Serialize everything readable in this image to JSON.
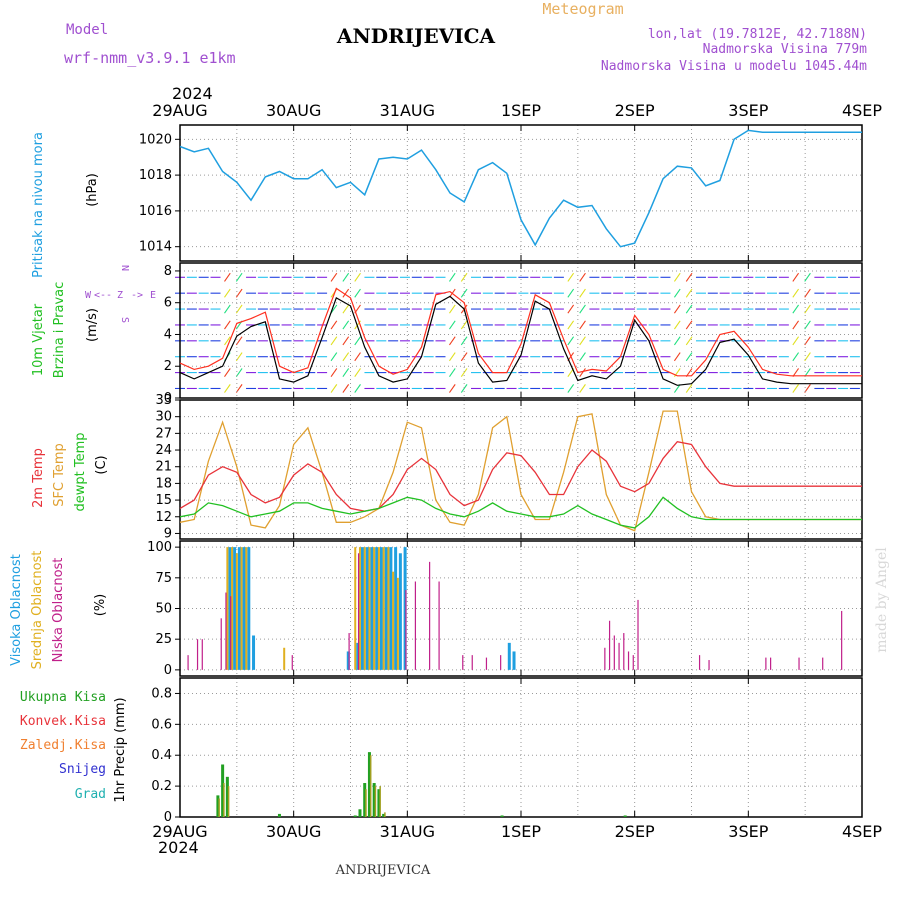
{
  "header": {
    "model_label": "Model",
    "model_name": "wrf-nmm_v3.9.1 e1km",
    "station": "ANDRIJEVICA",
    "meteogram_label": "Meteogram",
    "lonlat": "lon,lat (19.7812E, 42.7188N)",
    "altitude": "Nadmorska Visina 779m",
    "model_altitude": "Nadmorska Visina u modelu 1045.44m",
    "footer_station": "ANDRIJEVICA",
    "credit": "made by Angel"
  },
  "colors": {
    "pressure": "#1f9fe0",
    "temp2m": "#e8333a",
    "sfc_temp": "#e0a030",
    "dewpoint": "#22c022",
    "cloud_high": "#1f9fe0",
    "cloud_mid": "#e0b020",
    "cloud_low": "#c0208a",
    "precip_total": "#22a022",
    "precip_conv": "#e8333a",
    "precip_frozen": "#f08030",
    "precip_snow": "#3030d0",
    "precip_hail": "#20b0b0",
    "wind_speed": "#000000",
    "gust": "#ff3020",
    "label_purple": "#a050d0",
    "label_meteogram": "#e8b060"
  },
  "chart_data": [
    {
      "type": "line",
      "panel": "pressure",
      "x_axis": {
        "year_top": "2024",
        "year_bottom": "2024",
        "ticks": [
          "29AUG",
          "30AUG",
          "31AUG",
          "1SEP",
          "2SEP",
          "3SEP",
          "4SEP"
        ],
        "range_hours": [
          0,
          144
        ]
      },
      "ylabel": "Pritisak na nivou mora",
      "unit": "(hPa)",
      "yticks": [
        1014,
        1016,
        1018,
        1020
      ],
      "ylim": [
        1013.2,
        1020.8
      ],
      "grid": true,
      "x_hours": [
        0,
        3,
        6,
        9,
        12,
        15,
        18,
        21,
        24,
        27,
        30,
        33,
        36,
        39,
        42,
        45,
        48,
        51,
        54,
        57,
        60,
        63,
        66,
        69,
        72,
        75,
        78,
        81,
        84,
        87,
        90,
        93,
        96,
        99,
        102,
        105,
        108,
        111,
        114,
        117,
        120,
        123,
        126,
        129,
        132,
        135,
        138,
        141,
        144
      ],
      "values": [
        1019.6,
        1019.3,
        1019.5,
        1018.2,
        1017.6,
        1016.6,
        1017.9,
        1018.2,
        1017.8,
        1017.8,
        1018.3,
        1017.3,
        1017.6,
        1016.9,
        1018.9,
        1019.0,
        1018.9,
        1019.4,
        1018.3,
        1017.0,
        1016.5,
        1018.3,
        1018.7,
        1018.1,
        1015.5,
        1014.1,
        1015.6,
        1016.6,
        1016.2,
        1016.3,
        1015.0,
        1014.0,
        1014.2,
        1015.9,
        1017.8,
        1018.5,
        1018.4,
        1017.4,
        1017.7,
        1020.0,
        1020.5,
        1020.4,
        1020.4,
        1020.4,
        1020.4,
        1020.4,
        1020.4,
        1020.4,
        1020.4
      ]
    },
    {
      "type": "line",
      "panel": "wind",
      "ylabel_1": "10m Vjetar",
      "ylabel_2": "Brzina i Pravac",
      "unit": "(m/s)",
      "compass_legend": [
        "W",
        "<--",
        "Z",
        "->",
        "E",
        "N",
        "S"
      ],
      "yticks": [
        0,
        2,
        4,
        6,
        8
      ],
      "ylim": [
        0,
        8.5
      ],
      "grid": true,
      "x_hours": [
        0,
        3,
        6,
        9,
        12,
        15,
        18,
        21,
        24,
        27,
        30,
        33,
        36,
        39,
        42,
        45,
        48,
        51,
        54,
        57,
        60,
        63,
        66,
        69,
        72,
        75,
        78,
        81,
        84,
        87,
        90,
        93,
        96,
        99,
        102,
        105,
        108,
        111,
        114,
        117,
        120,
        123,
        126,
        129,
        132,
        135,
        138,
        141,
        144
      ],
      "speed": [
        1.6,
        1.2,
        1.6,
        2.0,
        3.9,
        4.5,
        4.8,
        1.2,
        1.0,
        1.4,
        3.8,
        6.3,
        5.8,
        3.2,
        1.4,
        1.0,
        1.2,
        2.6,
        5.9,
        6.4,
        5.6,
        2.2,
        1.0,
        1.1,
        2.7,
        6.1,
        5.6,
        3.1,
        1.1,
        1.4,
        1.2,
        2.0,
        4.9,
        3.6,
        1.2,
        0.8,
        0.9,
        1.8,
        3.5,
        3.7,
        2.7,
        1.2,
        1.0,
        0.9,
        0.9,
        0.9,
        0.9,
        0.9,
        0.9
      ],
      "gust": [
        2.2,
        1.8,
        2.0,
        2.5,
        4.7,
        5.0,
        5.4,
        2.0,
        1.6,
        1.9,
        4.5,
        6.9,
        6.3,
        3.8,
        2.0,
        1.5,
        1.8,
        3.2,
        6.5,
        6.7,
        6.0,
        2.8,
        1.6,
        1.6,
        3.4,
        6.5,
        6.0,
        3.7,
        1.6,
        1.8,
        1.7,
        2.6,
        5.2,
        4.0,
        1.8,
        1.4,
        1.4,
        2.4,
        4.0,
        4.2,
        3.2,
        1.8,
        1.5,
        1.4,
        1.4,
        1.4,
        1.4,
        1.4,
        1.4
      ]
    },
    {
      "type": "line",
      "panel": "temperature",
      "ylabel_1": "2m Temp",
      "ylabel_2": "SFC Temp",
      "ylabel_3": "dewpt Temp",
      "unit": "(C)",
      "yticks": [
        9,
        12,
        15,
        18,
        21,
        24,
        27,
        30,
        33
      ],
      "ylim": [
        8,
        33
      ],
      "grid": true,
      "x_hours": [
        0,
        3,
        6,
        9,
        12,
        15,
        18,
        21,
        24,
        27,
        30,
        33,
        36,
        39,
        42,
        45,
        48,
        51,
        54,
        57,
        60,
        63,
        66,
        69,
        72,
        75,
        78,
        81,
        84,
        87,
        90,
        93,
        96,
        99,
        102,
        105,
        108,
        111,
        114,
        117,
        120,
        123,
        126,
        129,
        132,
        135,
        138,
        141,
        144
      ],
      "temp2m": [
        13.5,
        15.0,
        19.5,
        21.0,
        20.0,
        16.0,
        14.5,
        15.5,
        19.5,
        21.5,
        20.0,
        16.0,
        13.5,
        13.0,
        13.5,
        16.0,
        20.5,
        22.5,
        20.5,
        16.0,
        14.0,
        15.0,
        20.5,
        23.5,
        23.0,
        20.0,
        16.0,
        16.0,
        21.0,
        24.0,
        22.0,
        17.5,
        16.5,
        18.0,
        22.5,
        25.5,
        25.0,
        21.0,
        18.0,
        17.5,
        17.5,
        17.5,
        17.5,
        17.5,
        17.5,
        17.5,
        17.5,
        17.5,
        17.5
      ],
      "sfc_temp": [
        11.0,
        11.5,
        22.0,
        29.0,
        21.0,
        10.5,
        10.0,
        14.0,
        25.0,
        28.0,
        20.0,
        11.0,
        11.0,
        12.0,
        13.5,
        20.0,
        29.0,
        28.0,
        15.0,
        11.0,
        10.5,
        16.0,
        28.0,
        30.0,
        16.0,
        11.5,
        11.5,
        20.0,
        30.0,
        30.5,
        16.0,
        10.5,
        9.5,
        20.0,
        31.0,
        31.0,
        16.5,
        12.0,
        11.5,
        11.5,
        11.5,
        11.5,
        11.5,
        11.5,
        11.5,
        11.5,
        11.5,
        11.5,
        11.5
      ],
      "dewpoint": [
        12.0,
        12.5,
        14.5,
        14.0,
        13.0,
        12.0,
        12.5,
        13.0,
        14.5,
        14.5,
        13.5,
        13.0,
        12.5,
        13.0,
        13.5,
        14.5,
        15.5,
        15.0,
        13.5,
        12.5,
        12.0,
        13.0,
        14.5,
        13.0,
        12.5,
        12.0,
        12.0,
        12.5,
        14.0,
        12.5,
        11.5,
        10.5,
        10.0,
        12.0,
        15.5,
        13.5,
        12.0,
        11.5,
        11.5,
        11.5,
        11.5,
        11.5,
        11.5,
        11.5,
        11.5,
        11.5,
        11.5,
        11.5,
        11.5
      ]
    },
    {
      "type": "bar",
      "panel": "clouds",
      "ylabel_1": "Visoka Oblacnost",
      "ylabel_2": "Srednja Oblacnost",
      "ylabel_3": "Niska Oblacnost",
      "unit": "(%)",
      "yticks": [
        0,
        25,
        50,
        75,
        100
      ],
      "ylim": [
        -5,
        105
      ],
      "grid": true,
      "high": [
        [
          10,
          100
        ],
        [
          11,
          100
        ],
        [
          12,
          100
        ],
        [
          13,
          100
        ],
        [
          14,
          100
        ],
        [
          15,
          28
        ],
        [
          35,
          15
        ],
        [
          37,
          22
        ],
        [
          38,
          100
        ],
        [
          39,
          100
        ],
        [
          40,
          100
        ],
        [
          41,
          100
        ],
        [
          42,
          100
        ],
        [
          43,
          100
        ],
        [
          44,
          100
        ],
        [
          45,
          100
        ],
        [
          46,
          95
        ],
        [
          47,
          100
        ],
        [
          69,
          22
        ],
        [
          70,
          15
        ]
      ],
      "mid": [
        [
          10,
          100
        ],
        [
          11,
          100
        ],
        [
          12,
          95
        ],
        [
          13,
          100
        ],
        [
          14,
          100
        ],
        [
          22,
          18
        ],
        [
          37,
          100
        ],
        [
          38,
          100
        ],
        [
          39,
          100
        ],
        [
          40,
          100
        ],
        [
          41,
          100
        ],
        [
          42,
          100
        ],
        [
          43,
          100
        ],
        [
          44,
          100
        ],
        [
          45,
          80
        ],
        [
          46,
          75
        ]
      ],
      "low": [
        [
          2,
          12
        ],
        [
          4,
          25
        ],
        [
          5,
          25
        ],
        [
          9,
          42
        ],
        [
          10,
          63
        ],
        [
          11,
          60
        ],
        [
          24,
          12
        ],
        [
          36,
          30
        ],
        [
          38,
          95
        ],
        [
          48,
          65
        ],
        [
          50,
          72
        ],
        [
          53,
          88
        ],
        [
          55,
          72
        ],
        [
          60,
          12
        ],
        [
          62,
          12
        ],
        [
          65,
          10
        ],
        [
          68,
          12
        ],
        [
          90,
          18
        ],
        [
          91,
          40
        ],
        [
          92,
          28
        ],
        [
          93,
          22
        ],
        [
          94,
          30
        ],
        [
          95,
          15
        ],
        [
          96,
          12
        ],
        [
          97,
          57
        ],
        [
          110,
          12
        ],
        [
          112,
          8
        ],
        [
          124,
          10
        ],
        [
          125,
          10
        ],
        [
          131,
          10
        ],
        [
          136,
          10
        ],
        [
          140,
          48
        ]
      ]
    },
    {
      "type": "bar",
      "panel": "precipitation",
      "ylabel": "1hr Precip (mm)",
      "legend": [
        "Ukupna Kisa",
        "Konvek.Kisa",
        "Zaledj.Kisa",
        "Snijeg",
        "Grad"
      ],
      "yticks": [
        0,
        0.2,
        0.4,
        0.6,
        0.8
      ],
      "ylim": [
        0,
        0.9
      ],
      "grid": true,
      "total": [
        [
          8,
          0.14
        ],
        [
          9,
          0.34
        ],
        [
          10,
          0.26
        ],
        [
          21,
          0.02
        ],
        [
          37,
          0.01
        ],
        [
          38,
          0.05
        ],
        [
          39,
          0.22
        ],
        [
          40,
          0.42
        ],
        [
          41,
          0.22
        ],
        [
          42,
          0.18
        ],
        [
          43,
          0.02
        ],
        [
          68,
          0.01
        ],
        [
          94,
          0.01
        ]
      ],
      "convective": [
        [
          8,
          0.12
        ],
        [
          9,
          0.22
        ],
        [
          10,
          0.2
        ],
        [
          39,
          0.18
        ],
        [
          40,
          0.4
        ],
        [
          41,
          0.2
        ],
        [
          42,
          0.2
        ],
        [
          43,
          0.03
        ]
      ]
    }
  ]
}
